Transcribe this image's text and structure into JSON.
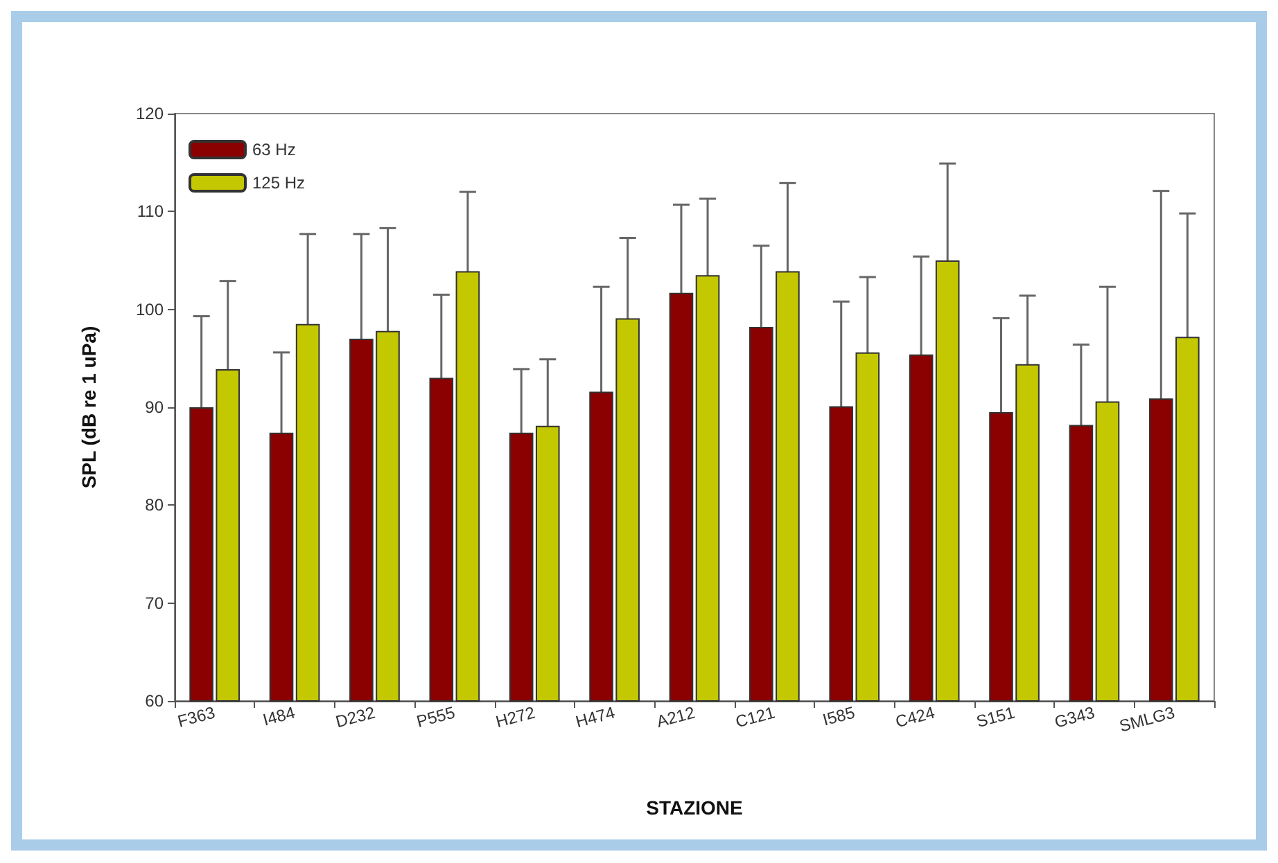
{
  "chart_data": {
    "type": "bar",
    "xlabel": "STAZIONE",
    "ylabel": "SPL (dB re 1 uPa)",
    "categories": [
      "F363",
      "I484",
      "D232",
      "P555",
      "H272",
      "H474",
      "A212",
      "C121",
      "I585",
      "C424",
      "S151",
      "G343",
      "SMLG3"
    ],
    "series": [
      {
        "name": "63 Hz",
        "color": "#8b0000",
        "values": [
          90,
          87.4,
          97,
          93,
          87.4,
          91.6,
          101.7,
          98.2,
          90.1,
          95.4,
          89.5,
          88.2,
          90.9
        ],
        "errors": [
          9.3,
          8.2,
          10.7,
          8.5,
          6.5,
          10.7,
          9,
          8.3,
          10.7,
          10,
          9.6,
          8.2,
          21.2
        ]
      },
      {
        "name": "125 Hz",
        "color": "#c4c800",
        "values": [
          93.9,
          98.5,
          97.8,
          103.9,
          88.1,
          99.1,
          103.5,
          103.9,
          95.6,
          105,
          94.4,
          90.6,
          97.2
        ],
        "errors": [
          9,
          9.2,
          10.5,
          8.1,
          6.8,
          8.2,
          7.8,
          9,
          7.7,
          9.9,
          7,
          11.7,
          12.6
        ]
      }
    ],
    "ylim": [
      60,
      120
    ],
    "yticks": [
      60,
      70,
      80,
      90,
      100,
      110,
      120
    ],
    "grid": false,
    "legend": "top left"
  }
}
